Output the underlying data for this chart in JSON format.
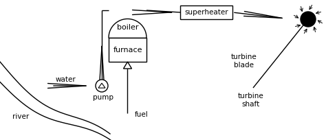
{
  "bg_color": "#ffffff",
  "line_color": "#000000",
  "text_color": "#000000",
  "figsize": [
    4.74,
    2.04
  ],
  "dpi": 100,
  "labels": {
    "boiler": "boiler",
    "furnace": "furnace",
    "superheater": "superheater",
    "pump": "pump",
    "water": "water",
    "fuel": "fuel",
    "river": "river",
    "turbine_blade": "turbine\nblade",
    "turbine_shaft": "turbine\nshaft"
  }
}
